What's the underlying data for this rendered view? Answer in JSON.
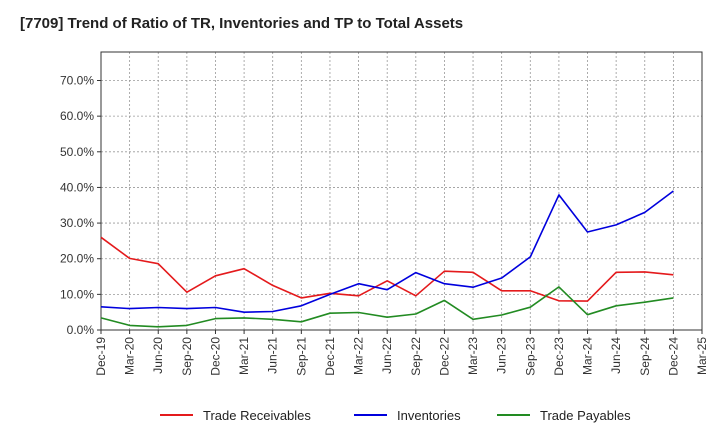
{
  "chart_data": {
    "type": "line",
    "title": "[7709]  Trend of Ratio of TR, Inventories and TP to Total Assets",
    "xlabel": "",
    "ylabel": "",
    "x": [
      "Dec-19",
      "Mar-20",
      "Jun-20",
      "Sep-20",
      "Dec-20",
      "Mar-21",
      "Jun-21",
      "Sep-21",
      "Dec-21",
      "Mar-22",
      "Jun-22",
      "Sep-22",
      "Dec-22",
      "Mar-23",
      "Jun-23",
      "Sep-23",
      "Dec-23",
      "Mar-24",
      "Jun-24",
      "Sep-24",
      "Dec-24"
    ],
    "x_ticks": [
      "Dec-19",
      "Mar-20",
      "Jun-20",
      "Sep-20",
      "Dec-20",
      "Mar-21",
      "Jun-21",
      "Sep-21",
      "Dec-21",
      "Mar-22",
      "Jun-22",
      "Sep-22",
      "Dec-22",
      "Mar-23",
      "Jun-23",
      "Sep-23",
      "Dec-23",
      "Mar-24",
      "Jun-24",
      "Sep-24",
      "Dec-24",
      "Mar-25"
    ],
    "y_ticks": [
      "0.0%",
      "10.0%",
      "20.0%",
      "30.0%",
      "40.0%",
      "50.0%",
      "60.0%",
      "70.0%"
    ],
    "ylim": [
      0,
      78
    ],
    "grid": true,
    "legend_position": "bottom",
    "series": [
      {
        "name": "Trade Receivables",
        "color": "#e41a1c",
        "values": [
          26.0,
          20.1,
          18.6,
          10.6,
          15.2,
          17.2,
          12.5,
          9.0,
          10.3,
          9.6,
          13.8,
          9.6,
          16.5,
          16.2,
          11.0,
          11.0,
          8.2,
          8.1,
          16.2,
          16.3,
          15.5
        ]
      },
      {
        "name": "Inventories",
        "color": "#0000dd",
        "values": [
          6.5,
          6.0,
          6.3,
          6.0,
          6.3,
          5.0,
          5.2,
          6.8,
          10.0,
          13.0,
          11.3,
          16.1,
          13.0,
          12.0,
          14.6,
          20.5,
          37.9,
          27.5,
          29.5,
          33.0,
          39.0
        ]
      },
      {
        "name": "Trade Payables",
        "color": "#228b22",
        "values": [
          3.4,
          1.3,
          0.9,
          1.3,
          3.2,
          3.4,
          3.0,
          2.3,
          4.7,
          4.9,
          3.6,
          4.5,
          8.3,
          3.0,
          4.2,
          6.4,
          12.1,
          4.3,
          6.8,
          7.8,
          9.0
        ]
      }
    ]
  }
}
